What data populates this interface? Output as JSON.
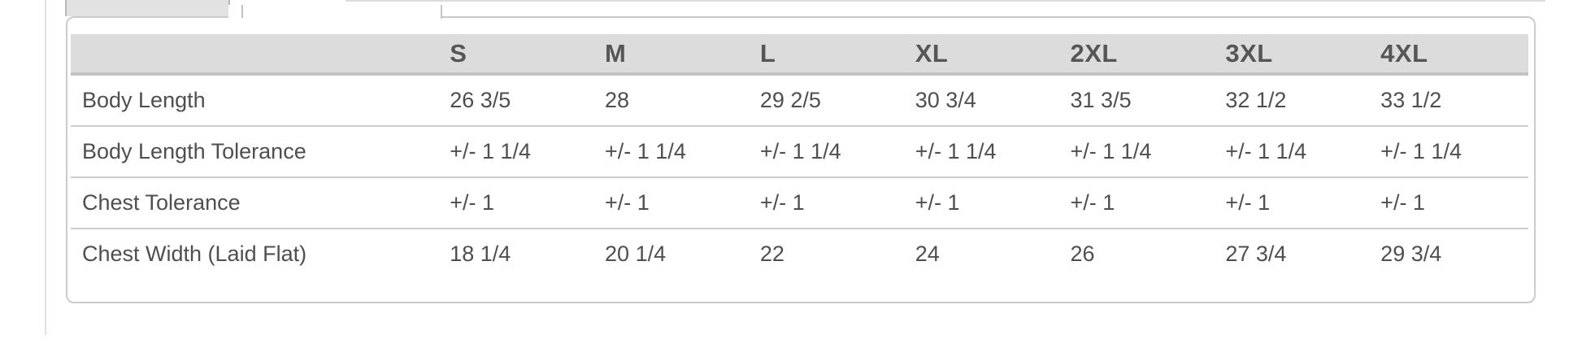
{
  "size_chart": {
    "columns": [
      "S",
      "M",
      "L",
      "XL",
      "2XL",
      "3XL",
      "4XL"
    ],
    "rows": [
      {
        "label": "Body Length",
        "values": [
          "26 3/5",
          "28",
          "29 2/5",
          "30 3/4",
          "31 3/5",
          "32 1/2",
          "33 1/2"
        ]
      },
      {
        "label": "Body Length Tolerance",
        "values": [
          "+/- 1 1/4",
          "+/- 1 1/4",
          "+/- 1 1/4",
          "+/- 1 1/4",
          "+/- 1 1/4",
          "+/- 1 1/4",
          "+/- 1 1/4"
        ]
      },
      {
        "label": "Chest Tolerance",
        "values": [
          "+/- 1",
          "+/- 1",
          "+/- 1",
          "+/- 1",
          "+/- 1",
          "+/- 1",
          "+/- 1"
        ]
      },
      {
        "label": "Chest Width (Laid Flat)",
        "values": [
          "18 1/4",
          "20 1/4",
          "22",
          "24",
          "26",
          "27 3/4",
          "29 3/4"
        ]
      }
    ]
  },
  "colors": {
    "header_bg": "#dcdcdc",
    "header_border": "#c3c3c3",
    "row_separator": "#cccccc",
    "panel_border": "#cbcbcb",
    "text": "#4f4f4f",
    "tab_bg": "#e2e2e2"
  }
}
